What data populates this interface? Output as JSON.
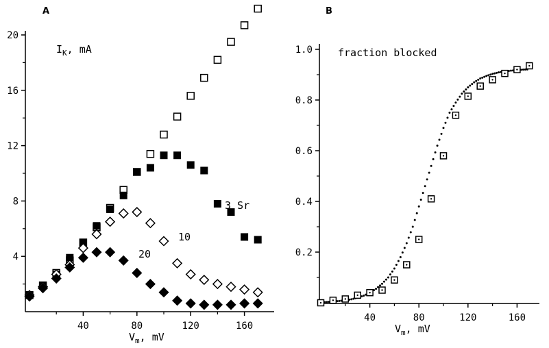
{
  "chart_data": [
    {
      "panel": "A",
      "type": "scatter",
      "title": "",
      "annotation": "I",
      "annotation_sub": "K",
      "annotation_unit": ", mA",
      "xlabel": "V",
      "xlabel_sub": "m",
      "xlabel_unit": ", mV",
      "ylabel": "",
      "xlim": [
        0,
        178
      ],
      "ylim": [
        0,
        21
      ],
      "xticks": [
        40,
        80,
        120,
        160
      ],
      "yticks": [
        4,
        8,
        12,
        16,
        20
      ],
      "series": [
        {
          "label": "",
          "marker": "open-square",
          "x": [
            0,
            10,
            20,
            30,
            40,
            50,
            60,
            70,
            80,
            90,
            100,
            110,
            120,
            130,
            140,
            150,
            160,
            170
          ],
          "y": [
            1.2,
            1.9,
            2.8,
            3.7,
            5.0,
            6.1,
            7.5,
            8.8,
            10.1,
            11.4,
            12.8,
            14.1,
            15.6,
            16.9,
            18.2,
            19.5,
            20.7,
            21.9
          ]
        },
        {
          "label": "3 Sr",
          "marker": "filled-square",
          "x": [
            0,
            10,
            20,
            30,
            40,
            50,
            60,
            70,
            80,
            90,
            100,
            110,
            120,
            130,
            140,
            150,
            160,
            170
          ],
          "y": [
            1.2,
            1.9,
            2.7,
            3.9,
            5.0,
            6.2,
            7.4,
            8.4,
            10.1,
            10.4,
            11.3,
            11.3,
            10.6,
            10.2,
            7.8,
            7.2,
            5.4,
            5.2
          ]
        },
        {
          "label": "10",
          "marker": "open-diamond",
          "x": [
            0,
            10,
            20,
            30,
            40,
            50,
            60,
            70,
            80,
            90,
            100,
            110,
            120,
            130,
            140,
            150,
            160,
            170
          ],
          "y": [
            1.2,
            1.8,
            2.7,
            3.4,
            4.6,
            5.6,
            6.5,
            7.1,
            7.2,
            6.4,
            5.1,
            3.5,
            2.7,
            2.3,
            2.0,
            1.8,
            1.6,
            1.4
          ]
        },
        {
          "label": "20",
          "marker": "filled-diamond",
          "x": [
            0,
            10,
            20,
            30,
            40,
            50,
            60,
            70,
            80,
            90,
            100,
            110,
            120,
            130,
            140,
            150,
            160,
            170
          ],
          "y": [
            1.1,
            1.7,
            2.4,
            3.2,
            3.9,
            4.3,
            4.3,
            3.7,
            2.8,
            2.0,
            1.4,
            0.8,
            0.6,
            0.5,
            0.5,
            0.5,
            0.6,
            0.6
          ]
        }
      ]
    },
    {
      "panel": "B",
      "type": "scatter",
      "title": "",
      "annotation": "fraction blocked",
      "xlabel": "V",
      "xlabel_sub": "m",
      "xlabel_unit": ", mV",
      "ylabel": "",
      "xlim": [
        0,
        178
      ],
      "ylim": [
        0,
        1.0
      ],
      "xticks": [
        40,
        80,
        120,
        160
      ],
      "yticks": [
        "0.2",
        "0.4",
        "0.6",
        "0.8",
        "1.0"
      ],
      "series": [
        {
          "label": "",
          "marker": "open-square-dot",
          "x": [
            0,
            10,
            20,
            30,
            40,
            50,
            60,
            70,
            80,
            90,
            100,
            110,
            120,
            130,
            140,
            150,
            160,
            170
          ],
          "y": [
            0.0,
            0.01,
            0.015,
            0.03,
            0.04,
            0.05,
            0.09,
            0.15,
            0.25,
            0.41,
            0.58,
            0.74,
            0.815,
            0.855,
            0.88,
            0.905,
            0.92,
            0.935
          ]
        },
        {
          "label": "",
          "marker": "dotted-fit",
          "x": [
            0,
            5,
            10,
            15,
            20,
            25,
            30,
            35,
            40,
            45,
            50,
            55,
            60,
            65,
            70,
            75,
            80,
            85,
            90,
            95,
            100,
            105,
            110,
            115,
            120,
            125,
            130,
            135,
            140,
            145,
            150,
            155,
            160,
            165,
            170
          ],
          "y": [
            0.002,
            0.003,
            0.005,
            0.007,
            0.01,
            0.014,
            0.02,
            0.028,
            0.04,
            0.055,
            0.075,
            0.1,
            0.135,
            0.18,
            0.235,
            0.3,
            0.38,
            0.46,
            0.54,
            0.62,
            0.69,
            0.75,
            0.79,
            0.825,
            0.85,
            0.87,
            0.885,
            0.895,
            0.903,
            0.909,
            0.913,
            0.916,
            0.918,
            0.92,
            0.921
          ]
        }
      ]
    }
  ]
}
